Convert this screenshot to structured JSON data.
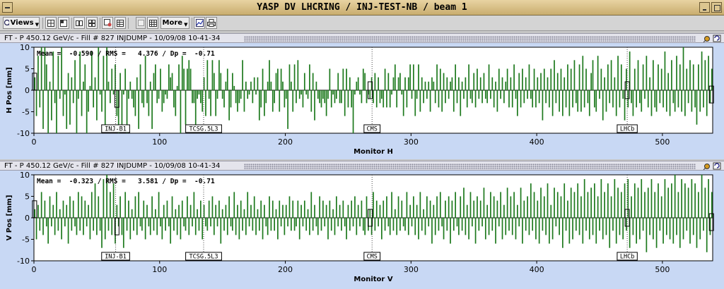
{
  "window": {
    "title": "YASP DV LHCRING / INJ-TEST-NB / beam 1"
  },
  "toolbar": {
    "views_label": "Views",
    "more_label": "More"
  },
  "panels": [
    {
      "header": "FT - P 450.12 GeV/c - Fill # 827 INJDUMP - 10/09/08 10-41-34",
      "stats": "Mean =  -0.590 / RMS =   4.376 / Dp =  -0.71",
      "ylabel": "H Pos [mm]",
      "xlabel": "Monitor H"
    },
    {
      "header": "FT - P 450.12 GeV/c - Fill # 827 INJDUMP - 10/09/08 10-41-34",
      "stats": "Mean =  -0.323 / RMS =   3.581 / Dp =  -0.71",
      "ylabel": "V Pos [mm]",
      "xlabel": "Monitor V"
    }
  ],
  "chart_data": [
    {
      "type": "bar",
      "ylabel": "H Pos [mm]",
      "xlabel": "Monitor H",
      "xlim": [
        0,
        540
      ],
      "ylim": [
        -10,
        10
      ],
      "xticks": [
        0,
        100,
        200,
        300,
        400,
        500
      ],
      "yticks": [
        -10,
        -5,
        0,
        5,
        10
      ],
      "markers": [
        {
          "label": "INJ-B1",
          "x": 65
        },
        {
          "label": "TCSG.5L3",
          "x": 135
        },
        {
          "label": "CMS",
          "x": 269
        },
        {
          "label": "LHCb",
          "x": 472
        }
      ],
      "mean": -0.59,
      "rms": 4.376,
      "dp": -0.71,
      "color": "#1e7a1e",
      "values": [
        3,
        -6,
        8,
        -4,
        10,
        -9,
        10,
        6,
        -10,
        2,
        -7,
        9,
        -3,
        -10,
        8,
        -2,
        10,
        -6,
        -1,
        -9,
        4,
        -8,
        3,
        -3,
        7,
        -10,
        -2,
        9,
        -6,
        2,
        6,
        -10,
        -5,
        1,
        9,
        -4,
        3,
        -7,
        10,
        -1,
        -5,
        8,
        -9,
        10,
        2,
        -3,
        5,
        -1,
        6,
        -6,
        -10,
        4,
        -8,
        -1,
        5,
        -10,
        -2,
        2,
        -2,
        -4,
        -6,
        3,
        -9,
        6,
        -3,
        -4,
        8,
        -3,
        -6,
        2,
        -9,
        4,
        6,
        -3,
        -2,
        5,
        -5,
        -3,
        -1,
        -2,
        6,
        3,
        4,
        -4,
        -6,
        1,
        6,
        -10,
        8,
        5,
        -8,
        5,
        7,
        5,
        -3,
        -3,
        -9,
        -2,
        -1,
        -3,
        -5,
        3,
        -6,
        7,
        -2,
        -6,
        7,
        4,
        -6,
        -2,
        7,
        4,
        -2,
        -4,
        2,
        5,
        -7,
        -4,
        4,
        1,
        -3,
        -5,
        -3,
        -2,
        7,
        -5,
        2,
        -2,
        -1,
        2,
        -3,
        3,
        -1,
        3,
        -7,
        -4,
        5,
        -6,
        -3,
        2,
        7,
        2,
        -5,
        -3,
        4,
        5,
        -5,
        5,
        2,
        -4,
        -2,
        -9,
        6,
        2,
        -5,
        6,
        -3,
        7,
        -2,
        -1,
        -4,
        4,
        -1,
        -2,
        6,
        -5,
        4,
        -7,
        2,
        -2,
        -3,
        -4,
        -2,
        -3,
        -6,
        -2,
        5,
        -4,
        -1,
        -3,
        -2,
        4,
        -3,
        -3,
        5,
        -6,
        5,
        -4,
        3,
        -4,
        -10,
        -1,
        2,
        3,
        -1,
        -3,
        5,
        4,
        -3,
        -1,
        -2,
        3,
        -3,
        4,
        -4,
        3,
        -3,
        -2,
        -4,
        5,
        -4,
        4,
        -4,
        -1,
        3,
        6,
        -4,
        3,
        4,
        -1,
        -6,
        3,
        -4,
        3,
        6,
        -2,
        6,
        -6,
        -2,
        6,
        -5,
        3,
        -3,
        2,
        -2,
        2,
        -5,
        3,
        2,
        -3,
        6,
        -4,
        5,
        -5,
        4,
        -3,
        3,
        -2,
        2,
        3,
        -5,
        6,
        -3,
        3,
        -6,
        2,
        -2,
        3,
        -4,
        6,
        -2,
        -3,
        4,
        -4,
        5,
        -2,
        3,
        -3,
        4,
        -2,
        -3,
        6,
        -2,
        3,
        -4,
        2,
        -5,
        5,
        -2,
        3,
        -3,
        2,
        5,
        -4,
        3,
        -4,
        6,
        -2,
        -6,
        4,
        -4,
        5,
        -3,
        3,
        -2,
        6,
        -2,
        -4,
        5,
        -4,
        3,
        -3,
        4,
        -7,
        5,
        -3,
        3,
        -4,
        5,
        -6,
        7,
        -3,
        4,
        -5,
        5,
        -6,
        3,
        -4,
        6,
        -6,
        5,
        -4,
        7,
        -3,
        -5,
        6,
        -5,
        8,
        -4,
        5,
        -3,
        -6,
        4,
        7,
        -4,
        -5,
        8,
        -2,
        5,
        -7,
        3,
        -5,
        6,
        -3,
        7,
        -4,
        3,
        -6,
        8,
        -4,
        6,
        -2,
        -7,
        5,
        -4,
        9,
        -3,
        -6,
        5,
        -4,
        7,
        -3,
        -5,
        6,
        -2,
        8,
        -4,
        3,
        -6,
        7,
        -4,
        -5,
        6,
        -3,
        5,
        -4,
        9,
        -5,
        4,
        -6,
        7,
        -3,
        -5,
        8,
        -4,
        6,
        -5,
        10,
        -6,
        5,
        -3,
        7,
        -5,
        6,
        -4,
        -8,
        6,
        -5,
        9,
        -4,
        7,
        -6,
        8,
        -3,
        5
      ]
    },
    {
      "type": "bar",
      "ylabel": "V Pos [mm]",
      "xlabel": "Monitor V",
      "xlim": [
        0,
        540
      ],
      "ylim": [
        -10,
        10
      ],
      "xticks": [
        0,
        100,
        200,
        300,
        400,
        500
      ],
      "yticks": [
        -10,
        -5,
        0,
        5,
        10
      ],
      "markers": [
        {
          "label": "INJ-B1",
          "x": 65
        },
        {
          "label": "TCSG.5L3",
          "x": 135
        },
        {
          "label": "CMS",
          "x": 269
        },
        {
          "label": "LHCb",
          "x": 472
        }
      ],
      "mean": -0.323,
      "rms": 3.581,
      "dp": -0.71,
      "color": "#1e7a1e",
      "values": [
        2,
        -5,
        3,
        -3,
        6,
        -4,
        4,
        -2,
        -6,
        5,
        -2,
        3,
        -4,
        6,
        -3,
        2,
        -5,
        4,
        -2,
        3,
        -6,
        5,
        -3,
        4,
        -2,
        -4,
        6,
        -3,
        5,
        -4,
        4,
        -2,
        3,
        -5,
        6,
        -3,
        8,
        -4,
        5,
        -3,
        -7,
        9,
        -5,
        10,
        -3,
        6,
        -4,
        8,
        -6,
        3,
        -2,
        5,
        -4,
        -7,
        6,
        -3,
        4,
        -5,
        2,
        -3,
        5,
        -4,
        6,
        -2,
        -3,
        4,
        -5,
        3,
        -2,
        -4,
        5,
        -3,
        2,
        -4,
        6,
        -2,
        -5,
        3,
        -3,
        4,
        -2,
        -6,
        5,
        -3,
        2,
        -4,
        3,
        -5,
        4,
        -2,
        -3,
        5,
        -4,
        3,
        -2,
        6,
        -4,
        2,
        -3,
        4,
        -5,
        3,
        -2,
        -3,
        4,
        -2,
        5,
        -4,
        3,
        -2,
        4,
        -6,
        2,
        -3,
        3,
        -4,
        5,
        -2,
        -3,
        6,
        -4,
        3,
        -5,
        4,
        -3,
        2,
        -4,
        6,
        -2,
        3,
        -3,
        5,
        -4,
        2,
        -3,
        4,
        -5,
        3,
        -2,
        -4,
        5,
        -3,
        4,
        -3,
        2,
        -5,
        4,
        -2,
        3,
        -4,
        3,
        -2,
        5,
        -3,
        4,
        -3,
        -2,
        4,
        -5,
        3,
        -2,
        4,
        -3,
        2,
        -4,
        6,
        -3,
        3,
        -2,
        -4,
        5,
        -3,
        4,
        -2,
        3,
        -5,
        4,
        -3,
        2,
        -4,
        5,
        -2,
        3,
        -3,
        4,
        -2,
        -5,
        3,
        -3,
        4,
        -2,
        5,
        -4,
        3,
        -2,
        4,
        -3,
        -4,
        5,
        -3,
        2,
        -4,
        6,
        -3,
        4,
        -2,
        3,
        -5,
        4,
        -3,
        5,
        -2,
        -4,
        6,
        -3,
        2,
        -4,
        5,
        -3,
        4,
        -2,
        -3,
        6,
        -4,
        3,
        -2,
        5,
        -4,
        3,
        -5,
        6,
        -3,
        2,
        -4,
        5,
        -2,
        4,
        -6,
        3,
        -4,
        5,
        -3,
        6,
        -2,
        -5,
        4,
        -3,
        5,
        -6,
        4,
        -3,
        6,
        -2,
        -4,
        5,
        -3,
        7,
        -4,
        3,
        -5,
        6,
        -2,
        4,
        -6,
        5,
        -3,
        4,
        -2,
        7,
        -5,
        3,
        -4,
        6,
        -3,
        5,
        -6,
        4,
        -2,
        6,
        -5,
        3,
        -4,
        7,
        -3,
        5,
        -4,
        6,
        -5,
        3,
        -2,
        7,
        -6,
        4,
        -3,
        5,
        -4,
        8,
        -3,
        6,
        -5,
        4,
        -6,
        7,
        -3,
        5,
        -4,
        8,
        -6,
        3,
        -5,
        7,
        -2,
        6,
        -4,
        5,
        -7,
        8,
        -3,
        4,
        -6,
        7,
        -5,
        6,
        -3,
        8,
        -4,
        5,
        -6,
        9,
        -3,
        6,
        -5,
        7,
        -4,
        8,
        -6,
        5,
        -3,
        9,
        -5,
        6,
        -4,
        8,
        -7,
        5,
        -3,
        9,
        -6,
        7,
        -4,
        6,
        -5,
        8,
        -3,
        9,
        -7,
        5,
        -4,
        8,
        -6,
        7,
        -5,
        9,
        -3,
        6,
        -8,
        7,
        -4,
        9,
        -5,
        6,
        -7,
        8,
        -3,
        5,
        -6,
        9,
        -4,
        7,
        -5,
        8,
        -6,
        10,
        -4,
        6,
        -7,
        9,
        -5,
        8,
        -3,
        7,
        -6,
        9,
        -4,
        8,
        -7,
        6,
        -5,
        10,
        -3,
        7,
        -8,
        9,
        -4,
        6
      ]
    }
  ]
}
